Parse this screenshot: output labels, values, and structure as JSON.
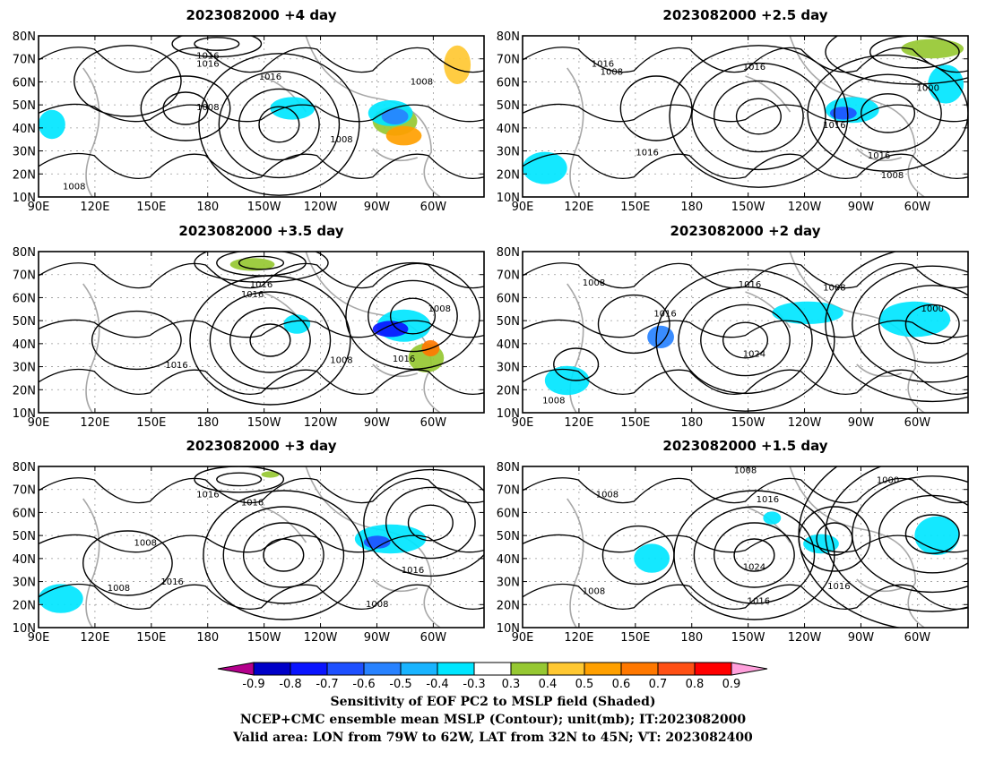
{
  "panels": [
    {
      "title": "2023082000  +4 day",
      "contour_labels": [
        "1016",
        "1016",
        "1016",
        "1008",
        "1008",
        "1008",
        "1008"
      ]
    },
    {
      "title": "2023082000  +2.5 day",
      "contour_labels": [
        "1016",
        "1008",
        "1016",
        "1000",
        "1016",
        "1016",
        "1016",
        "1008"
      ]
    },
    {
      "title": "2023082000  +3.5 day",
      "contour_labels": [
        "1016",
        "1016",
        "1008",
        "1016",
        "1008",
        "1016"
      ]
    },
    {
      "title": "2023082000  +2 day",
      "contour_labels": [
        "1008",
        "1016",
        "1016",
        "1008",
        "1000",
        "1024",
        "1008"
      ]
    },
    {
      "title": "2023082000  +3 day",
      "contour_labels": [
        "1016",
        "1016",
        "1008",
        "1008",
        "1016",
        "1016",
        "1008"
      ]
    },
    {
      "title": "2023082000  +1.5 day",
      "contour_labels": [
        "1008",
        "1008",
        "1016",
        "1000",
        "1024",
        "1016",
        "1016",
        "1008"
      ]
    }
  ],
  "axes": {
    "lon_labels": [
      "90E",
      "120E",
      "150E",
      "180",
      "150W",
      "120W",
      "90W",
      "60W"
    ],
    "lat_labels": [
      "80N",
      "70N",
      "60N",
      "50N",
      "40N",
      "30N",
      "20N",
      "10N"
    ]
  },
  "colorbar": {
    "labels": [
      "-0.9",
      "-0.8",
      "-0.7",
      "-0.6",
      "-0.5",
      "-0.4",
      "-0.3",
      "0.3",
      "0.4",
      "0.5",
      "0.6",
      "0.7",
      "0.8",
      "0.9"
    ],
    "colors": [
      "#0000c8",
      "#0a14ff",
      "#1e50ff",
      "#2882ff",
      "#19b4ff",
      "#00e6ff",
      "#ffffff",
      "#96c832",
      "#ffc832",
      "#ffa000",
      "#ff7800",
      "#ff5014",
      "#ff0000"
    ],
    "under_color": "#b4008c",
    "over_color": "#ffa0dc"
  },
  "captions": [
    "Sensitivity of EOF PC2 to MSLP field (Shaded)",
    "NCEP+CMC ensemble mean MSLP (Contour); unit(mb); IT:2023082000",
    "Valid area: LON from 79W to 62W, LAT from 32N to 45N; VT: 2023082400"
  ]
}
